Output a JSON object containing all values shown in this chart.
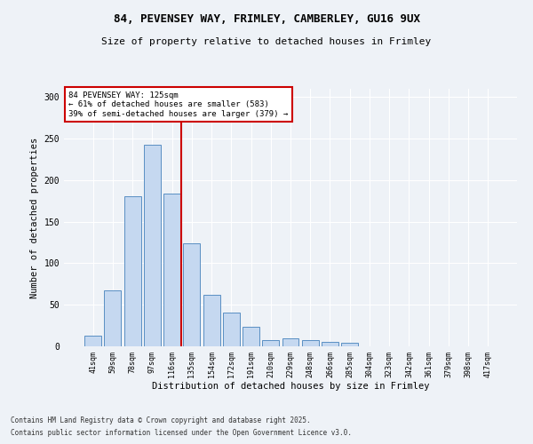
{
  "title_line1": "84, PEVENSEY WAY, FRIMLEY, CAMBERLEY, GU16 9UX",
  "title_line2": "Size of property relative to detached houses in Frimley",
  "xlabel": "Distribution of detached houses by size in Frimley",
  "ylabel": "Number of detached properties",
  "categories": [
    "41sqm",
    "59sqm",
    "78sqm",
    "97sqm",
    "116sqm",
    "135sqm",
    "154sqm",
    "172sqm",
    "191sqm",
    "210sqm",
    "229sqm",
    "248sqm",
    "266sqm",
    "285sqm",
    "304sqm",
    "323sqm",
    "342sqm",
    "361sqm",
    "379sqm",
    "398sqm",
    "417sqm"
  ],
  "values": [
    13,
    67,
    181,
    243,
    184,
    124,
    62,
    41,
    23,
    8,
    10,
    7,
    5,
    4,
    0,
    0,
    0,
    0,
    0,
    0,
    0
  ],
  "bar_color": "#c5d8f0",
  "bar_edge_color": "#5a8fc3",
  "bar_edge_width": 0.7,
  "property_line_color": "#cc0000",
  "annotation_text": "84 PEVENSEY WAY: 125sqm\n← 61% of detached houses are smaller (583)\n39% of semi-detached houses are larger (379) →",
  "annotation_box_color": "#cc0000",
  "ylim": [
    0,
    310
  ],
  "yticks": [
    0,
    50,
    100,
    150,
    200,
    250,
    300
  ],
  "background_color": "#eef2f7",
  "grid_color": "#ffffff",
  "footer_line1": "Contains HM Land Registry data © Crown copyright and database right 2025.",
  "footer_line2": "Contains public sector information licensed under the Open Government Licence v3.0."
}
